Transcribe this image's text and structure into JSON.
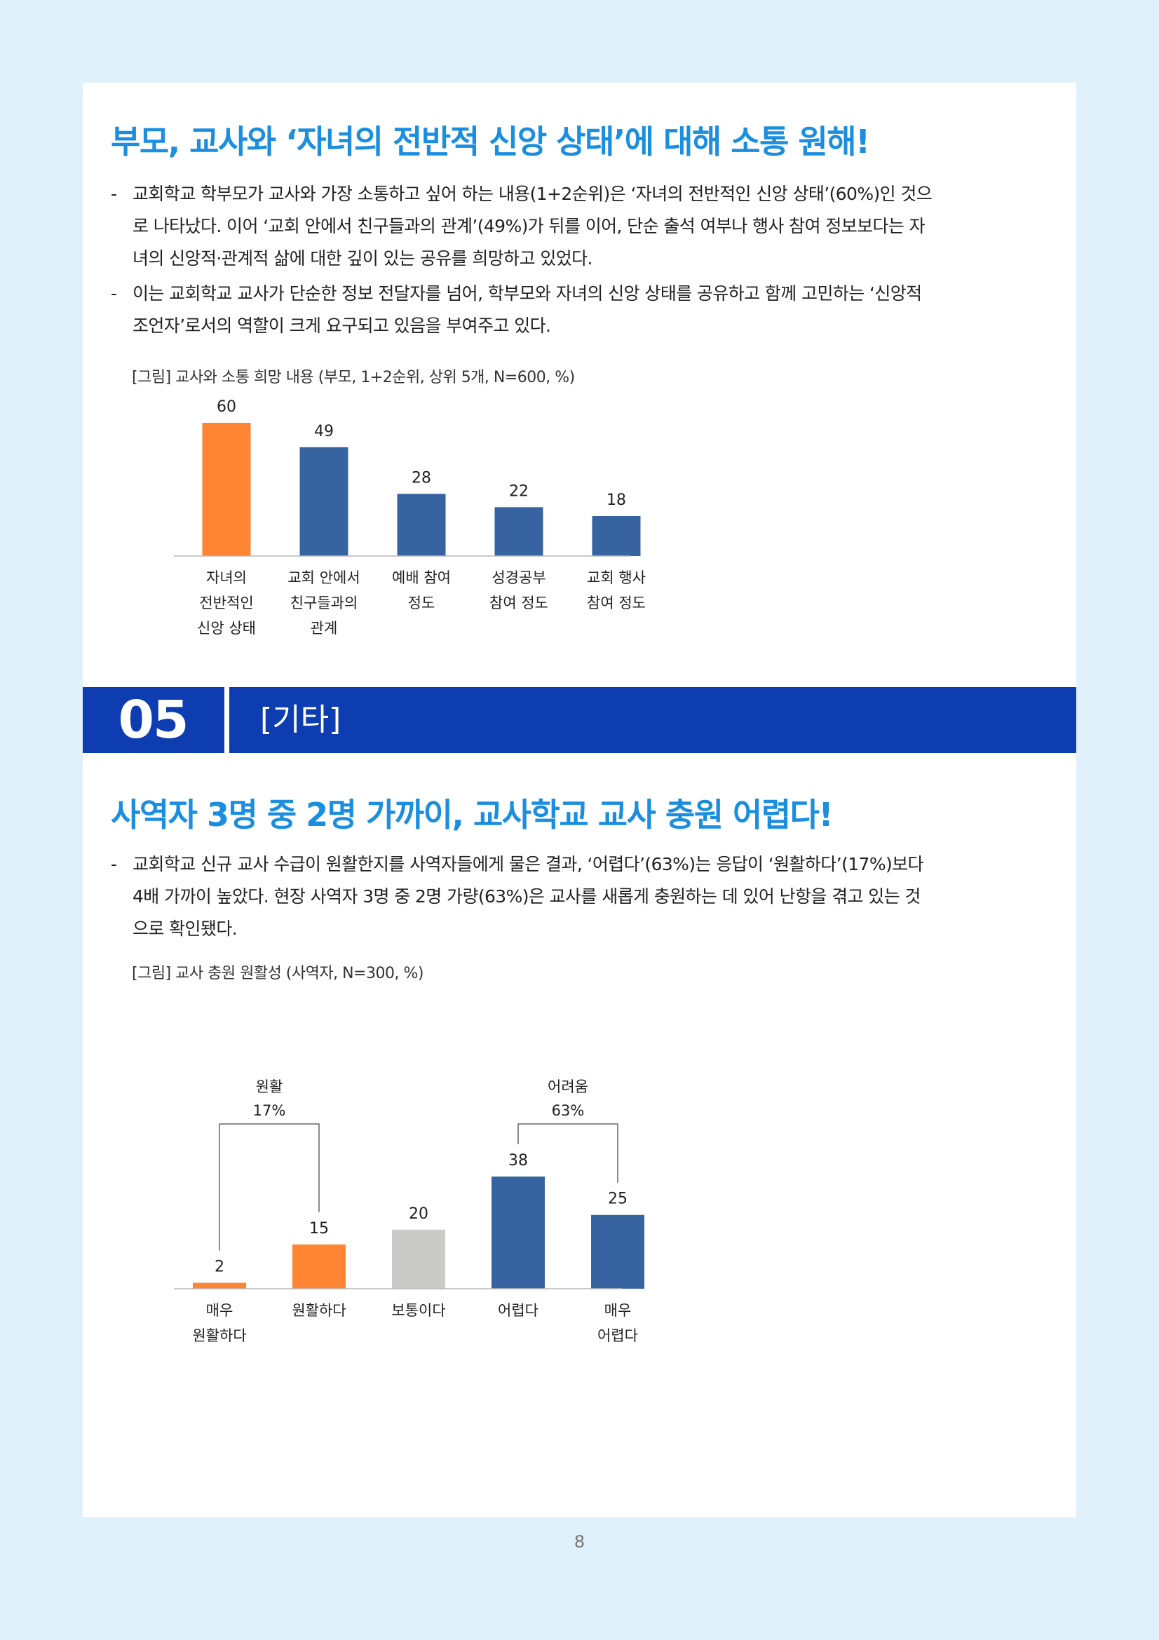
{
  "section1": {
    "heading": "부모, 교사와 ‘자녀의 전반적 신앙 상태’에 대해 소통 원해!",
    "bullet_marker": "-",
    "para1_lines": [
      "교회학교 학부모가 교사와 가장 소통하고 싶어 하는 내용(1+2순위)은 ‘자녀의 전반적인 신앙 상태’(60%)인 것으",
      "로 나타났다. 이어 ‘교회 안에서 친구들과의 관계’(49%)가 뒤를 이어, 단순 출석 여부나 행사 참여 정보보다는 자",
      "녀의 신앙적·관계적 삶에 대한 깊이 있는 공유를 희망하고 있었다."
    ],
    "para2_lines": [
      "이는 교회학교 교사가 단순한 정보 전달자를 넘어, 학부모와 자녀의 신앙 상태를 공유하고 함께 고민하는 ‘신앙적",
      "조언자’로서의 역할이 크게 요구되고 있음을 부여주고 있다."
    ],
    "figure_caption": "[그림] 교사와 소통 희망 내용 (부모, 1+2순위, 상위 5개, N=600, %)"
  },
  "section_bar": {
    "number": "05",
    "title": "[기타]"
  },
  "section2": {
    "heading": "사역자 3명 중 2명 가까이, 교사학교 교사 충원 어렵다!",
    "bullet_marker": "-",
    "para1_lines": [
      "교회학교 신규 교사 수급이 원활한지를 사역자들에게 물은 결과, ‘어렵다’(63%)는 응답이 ‘원활하다’(17%)보다",
      "4배 가까이 높았다. 현장 사역자 3명 중 2명 가량(63%)은 교사를 새롭게 충원하는 데 있어 난항을 겪고 있는 것",
      "으로 확인됐다."
    ],
    "figure_caption": "[그림] 교사 충원 원활성 (사역자, N=300, %)"
  },
  "page_number": "8",
  "colors": {
    "orange": "#fd8534",
    "blue": "#3764a0",
    "gray": "#cacac8",
    "heading": "#1b8ee0",
    "bar": "#0d3db0",
    "background": "#e1f1fb"
  },
  "chart_data": [
    {
      "type": "bar",
      "categories": [
        [
          "자녀의",
          "전반적인",
          "신앙 상태"
        ],
        [
          "교회 안에서",
          "친구들과의",
          "관계"
        ],
        [
          "예배 참여",
          "정도"
        ],
        [
          "성경공부",
          "참여 정도"
        ],
        [
          "교회 행사",
          "참여 정도"
        ]
      ],
      "values": [
        60,
        49,
        28,
        22,
        18
      ],
      "colors": [
        "#fd8534",
        "#3764a0",
        "#3764a0",
        "#3764a0",
        "#3764a0"
      ],
      "ylim": [
        0,
        60
      ],
      "grid": false,
      "legend": "none"
    },
    {
      "type": "bar",
      "categories": [
        [
          "매우",
          "원활하다"
        ],
        [
          "원활하다"
        ],
        [
          "보통이다"
        ],
        [
          "어렵다"
        ],
        [
          "매우",
          "어렵다"
        ]
      ],
      "values": [
        2,
        15,
        20,
        38,
        25
      ],
      "colors": [
        "#fd8534",
        "#fd8534",
        "#cacac8",
        "#3764a0",
        "#3764a0"
      ],
      "ylim": [
        0,
        38
      ],
      "grid": false,
      "legend": "none",
      "annotations": [
        {
          "label": "원활",
          "value": "17%",
          "spans": [
            0,
            1
          ]
        },
        {
          "label": "어려움",
          "value": "63%",
          "spans": [
            3,
            4
          ]
        }
      ]
    }
  ]
}
